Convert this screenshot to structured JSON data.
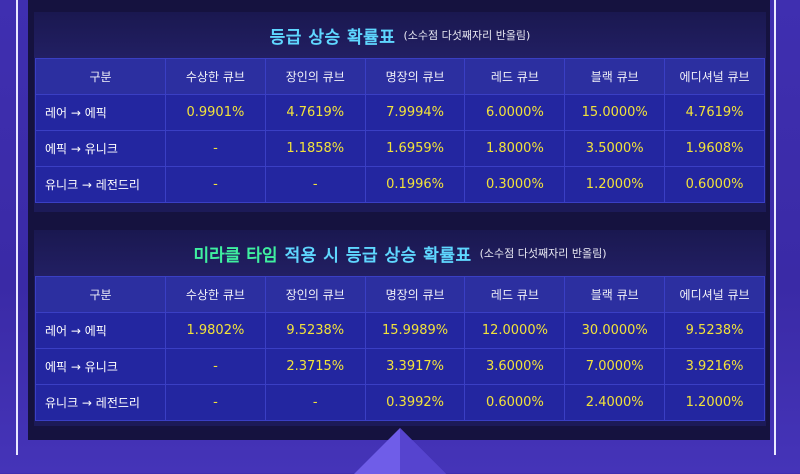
{
  "colors": {
    "title_text": "#5fd7ff",
    "highlight_text": "#3ff0a0",
    "value_text": "#f2e23a",
    "header_bg": "#2c2fa0",
    "row_bg": "#2326a0"
  },
  "table1": {
    "title": "등급 상승 확률표",
    "note": "(소수점 다섯째자리 반올림)",
    "headers": [
      "구분",
      "수상한 큐브",
      "장인의 큐브",
      "명장의 큐브",
      "레드 큐브",
      "블랙 큐브",
      "에디셔널 큐브"
    ],
    "rows": [
      {
        "label": "레어 → 에픽",
        "values": [
          "0.9901%",
          "4.7619%",
          "7.9994%",
          "6.0000%",
          "15.0000%",
          "4.7619%"
        ]
      },
      {
        "label": "에픽 → 유니크",
        "values": [
          "-",
          "1.1858%",
          "1.6959%",
          "1.8000%",
          "3.5000%",
          "1.9608%"
        ]
      },
      {
        "label": "유니크 → 레전드리",
        "values": [
          "-",
          "-",
          "0.1996%",
          "0.3000%",
          "1.2000%",
          "0.6000%"
        ]
      }
    ]
  },
  "table2": {
    "title_highlight": "미라클 타임",
    "title": "적용 시 등급 상승 확률표",
    "note": "(소수점 다섯째자리 반올림)",
    "headers": [
      "구분",
      "수상한 큐브",
      "장인의 큐브",
      "명장의 큐브",
      "레드 큐브",
      "블랙 큐브",
      "에디셔널 큐브"
    ],
    "rows": [
      {
        "label": "레어 → 에픽",
        "values": [
          "1.9802%",
          "9.5238%",
          "15.9989%",
          "12.0000%",
          "30.0000%",
          "9.5238%"
        ]
      },
      {
        "label": "에픽 → 유니크",
        "values": [
          "-",
          "2.3715%",
          "3.3917%",
          "3.6000%",
          "7.0000%",
          "3.9216%"
        ]
      },
      {
        "label": "유니크 → 레전드리",
        "values": [
          "-",
          "-",
          "0.3992%",
          "0.6000%",
          "2.4000%",
          "1.2000%"
        ]
      }
    ]
  }
}
